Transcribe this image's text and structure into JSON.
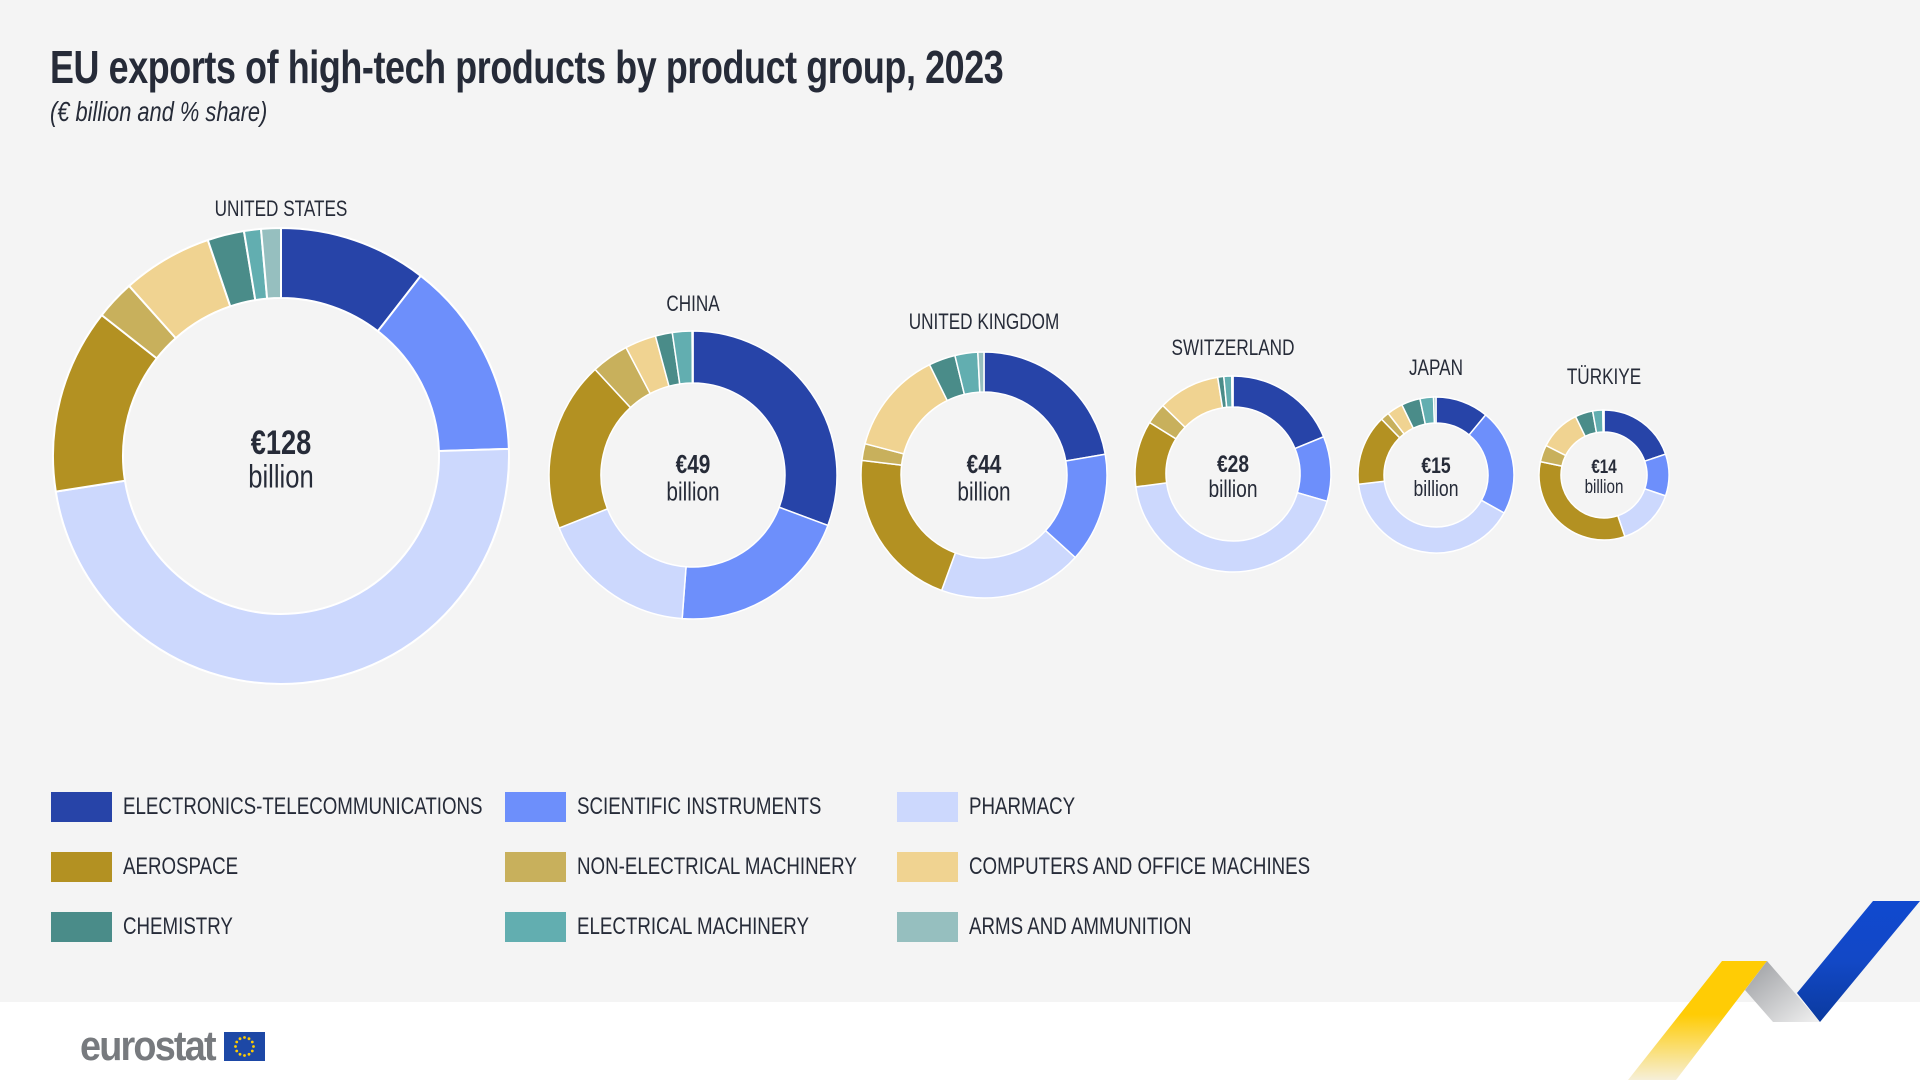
{
  "header": {
    "title": "EU exports of high-tech products by product group, 2023",
    "subtitle": "(€ billion and % share)"
  },
  "colors": {
    "electronics": "#2744a8",
    "scientific": "#6d8ffb",
    "pharmacy": "#ccd8fd",
    "aerospace": "#b39122",
    "non_electrical": "#c8b05c",
    "computers": "#f0d391",
    "chemistry": "#4a8c89",
    "electrical": "#62aeb0",
    "arms": "#96bfbf",
    "text": "#262b38",
    "background": "#f4f4f4"
  },
  "chart_data": {
    "type": "pie",
    "subtype": "donut",
    "title": "EU exports of high-tech products by product group, 2023",
    "subtitle": "(€ billion and % share)",
    "unit": "% share",
    "categories": [
      "ELECTRONICS-TELECOMMUNICATIONS",
      "SCIENTIFIC INSTRUMENTS",
      "PHARMACY",
      "AEROSPACE",
      "NON-ELECTRICAL MACHINERY",
      "COMPUTERS AND OFFICE MACHINES",
      "CHEMISTRY",
      "ELECTRICAL MACHINERY",
      "ARMS AND AMMUNITION"
    ],
    "series": [
      {
        "name": "UNITED STATES",
        "total": 128,
        "total_label": "€128",
        "unit_label": "billion",
        "values": [
          10.5,
          14.0,
          48.0,
          13.1,
          2.8,
          6.4,
          2.6,
          1.2,
          1.4
        ]
      },
      {
        "name": "CHINA",
        "total": 49,
        "total_label": "€49",
        "unit_label": "billion",
        "values": [
          30.7,
          20.5,
          17.8,
          19.1,
          4.2,
          3.5,
          1.9,
          2.2,
          0.1
        ]
      },
      {
        "name": "UNITED KINGDOM",
        "total": 44,
        "total_label": "€44",
        "unit_label": "billion",
        "values": [
          22.3,
          14.4,
          18.9,
          21.3,
          2.2,
          13.6,
          3.5,
          3.0,
          0.8
        ]
      },
      {
        "name": "SWITZERLAND",
        "total": 28,
        "total_label": "€28",
        "unit_label": "billion",
        "values": [
          18.8,
          10.7,
          43.4,
          10.9,
          3.5,
          10.2,
          1.0,
          1.3,
          0.2
        ]
      },
      {
        "name": "JAPAN",
        "total": 15,
        "total_label": "€15",
        "unit_label": "billion",
        "values": [
          11.0,
          22.1,
          40.0,
          14.6,
          1.8,
          3.3,
          3.9,
          2.8,
          0.5
        ]
      },
      {
        "name": "TÜRKIYE",
        "total": 14,
        "total_label": "€14",
        "unit_label": "billion",
        "values": [
          19.8,
          10.4,
          14.6,
          33.5,
          4.2,
          10.3,
          4.4,
          2.5,
          0.3
        ]
      }
    ],
    "legend_position": "bottom-left",
    "grid": false
  },
  "legend": [
    {
      "label": "ELECTRONICS-TELECOMMUNICATIONS",
      "color_key": "electronics"
    },
    {
      "label": "SCIENTIFIC INSTRUMENTS",
      "color_key": "scientific"
    },
    {
      "label": "PHARMACY",
      "color_key": "pharmacy"
    },
    {
      "label": "AEROSPACE",
      "color_key": "aerospace"
    },
    {
      "label": "NON-ELECTRICAL MACHINERY",
      "color_key": "non_electrical"
    },
    {
      "label": "COMPUTERS AND OFFICE MACHINES",
      "color_key": "computers"
    },
    {
      "label": "CHEMISTRY",
      "color_key": "chemistry"
    },
    {
      "label": "ELECTRICAL MACHINERY",
      "color_key": "electrical"
    },
    {
      "label": "ARMS AND AMMUNITION",
      "color_key": "arms"
    }
  ],
  "footer": {
    "logo_text": "eurostat",
    "logo_icon": "eu-flag-icon"
  }
}
